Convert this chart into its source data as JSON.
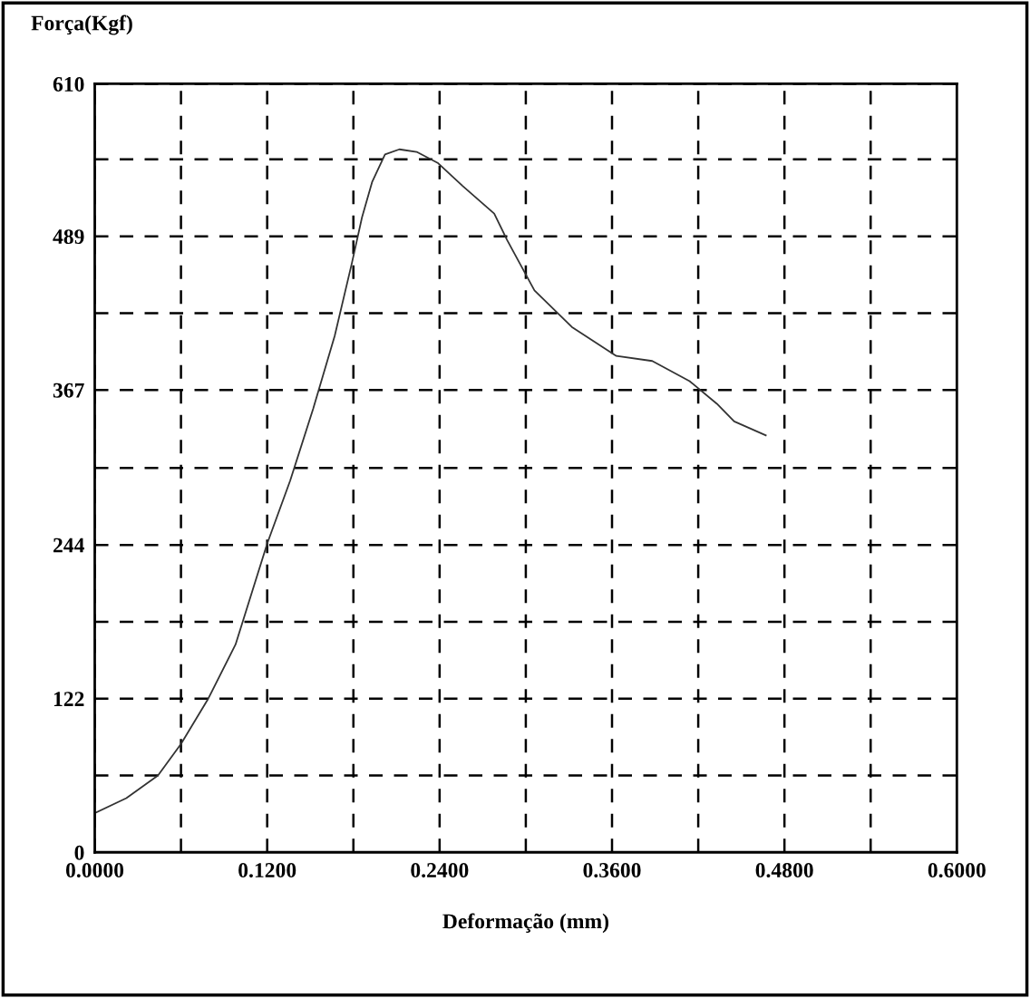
{
  "chart_data": {
    "type": "line",
    "xlabel": "Deformação (mm)",
    "ylabel": "Força(Kgf)",
    "xlim": [
      0,
      0.6
    ],
    "ylim": [
      0,
      610
    ],
    "xticks": [
      {
        "value": 0,
        "label": "0.0000"
      },
      {
        "value": 0.06,
        "label": null
      },
      {
        "value": 0.12,
        "label": "0.1200"
      },
      {
        "value": 0.18,
        "label": null
      },
      {
        "value": 0.24,
        "label": "0.2400"
      },
      {
        "value": 0.3,
        "label": null
      },
      {
        "value": 0.36,
        "label": "0.3600"
      },
      {
        "value": 0.42,
        "label": null
      },
      {
        "value": 0.48,
        "label": "0.4800"
      },
      {
        "value": 0.54,
        "label": null
      },
      {
        "value": 0.6,
        "label": "0.6000"
      }
    ],
    "yticks": [
      0,
      {
        "value": 61,
        "label": null
      },
      122,
      {
        "value": 183,
        "label": null
      },
      244,
      {
        "value": 305,
        "label": null
      },
      367,
      {
        "value": 428,
        "label": null
      },
      489,
      {
        "value": 550,
        "label": null
      },
      610
    ],
    "grid": true,
    "series": [
      {
        "color": "#333333",
        "x": [
          0,
          0.022,
          0.044,
          0.06,
          0.079,
          0.098,
          0.12,
          0.136,
          0.152,
          0.167,
          0.179,
          0.186,
          0.193,
          0.202,
          0.212,
          0.224,
          0.239,
          0.256,
          0.278,
          0.287,
          0.306,
          0.332,
          0.363,
          0.388,
          0.414,
          0.433,
          0.445,
          0.467
        ],
        "values": [
          31,
          43,
          61,
          86,
          122,
          165,
          245,
          295,
          352,
          410,
          468,
          504,
          532,
          554,
          558,
          556,
          547,
          529,
          507,
          486,
          446,
          417,
          394,
          390,
          374,
          356,
          342,
          331
        ]
      }
    ]
  }
}
